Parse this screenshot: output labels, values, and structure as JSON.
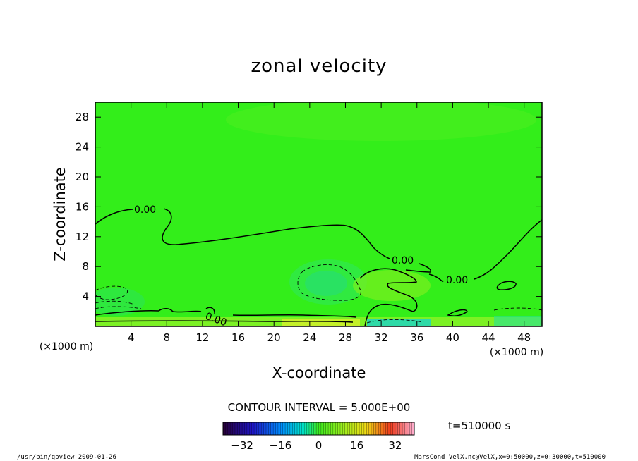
{
  "chart_data": {
    "type": "heatmap",
    "title": "zonal velocity",
    "xlabel": "X-coordinate",
    "ylabel": "Z-coordinate",
    "x_unit": "(×1000 m)",
    "y_unit": "(×1000 m)",
    "xlim": [
      0,
      50
    ],
    "ylim": [
      0,
      30
    ],
    "x_ticks": [
      "4",
      "8",
      "12",
      "16",
      "20",
      "24",
      "28",
      "32",
      "36",
      "40",
      "44",
      "48"
    ],
    "y_ticks": [
      "4",
      "8",
      "12",
      "16",
      "20",
      "24",
      "28"
    ],
    "contour_interval": "CONTOUR INTERVAL = 5.000E+00",
    "contour_labels": [
      "0.00",
      "0.00",
      "0.00",
      "0.00"
    ],
    "time": "t=510000 s",
    "colorbar": {
      "min": -40,
      "max": 40,
      "ticks": [
        "−32",
        "−16",
        "0",
        "16",
        "32"
      ]
    },
    "background_color": "#33ee1a",
    "footer_left": "/usr/bin/gpview   2009-01-26",
    "footer_right": "MarsCond_VelX.nc@VelX,x=0:50000,z=0:30000,t=510000"
  }
}
